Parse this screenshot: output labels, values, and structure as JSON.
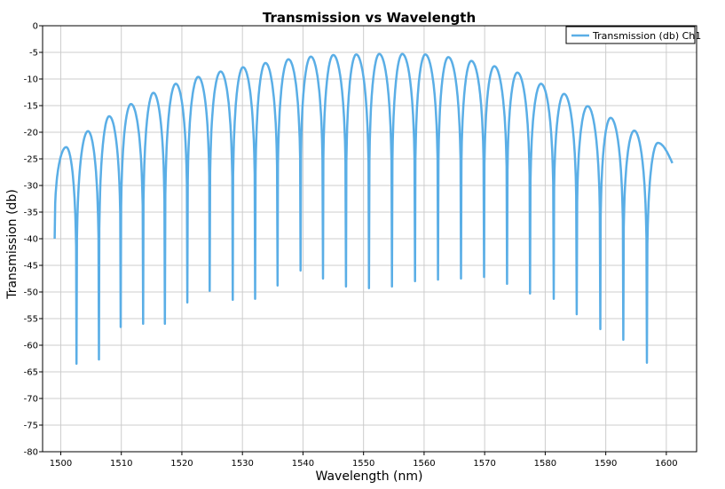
{
  "chart_data": {
    "type": "line",
    "title": "Transmission vs Wavelength",
    "xlabel": "Wavelength (nm)",
    "ylabel": "Transmission (db)",
    "xlim": [
      1497,
      1605
    ],
    "ylim": [
      -80,
      0
    ],
    "xticks": [
      1500,
      1510,
      1520,
      1530,
      1540,
      1550,
      1560,
      1570,
      1580,
      1590,
      1600
    ],
    "yticks": [
      0,
      -5,
      -10,
      -15,
      -20,
      -25,
      -30,
      -35,
      -40,
      -45,
      -50,
      -55,
      -60,
      -65,
      -70,
      -75,
      -80
    ],
    "grid": true,
    "legend_position": "top-right",
    "series": [
      {
        "name": "Transmission (db) Ch1",
        "color": "#5aaee6",
        "x_start": 1499.0,
        "x_end": 1601.0,
        "start_value": -40,
        "end_value": -25.8,
        "peaks": [
          {
            "x": 1500.9,
            "y": -22.8
          },
          {
            "x": 1504.5,
            "y": -19.8
          },
          {
            "x": 1508.0,
            "y": -17.0
          },
          {
            "x": 1511.6,
            "y": -14.7
          },
          {
            "x": 1515.3,
            "y": -12.6
          },
          {
            "x": 1519.0,
            "y": -10.9
          },
          {
            "x": 1522.7,
            "y": -9.6
          },
          {
            "x": 1526.4,
            "y": -8.6
          },
          {
            "x": 1530.1,
            "y": -7.8
          },
          {
            "x": 1533.8,
            "y": -7.0
          },
          {
            "x": 1537.6,
            "y": -6.3
          },
          {
            "x": 1541.3,
            "y": -5.8
          },
          {
            "x": 1545.0,
            "y": -5.5
          },
          {
            "x": 1548.8,
            "y": -5.4
          },
          {
            "x": 1552.6,
            "y": -5.3
          },
          {
            "x": 1556.4,
            "y": -5.3
          },
          {
            "x": 1560.2,
            "y": -5.4
          },
          {
            "x": 1564.0,
            "y": -5.9
          },
          {
            "x": 1567.8,
            "y": -6.6
          },
          {
            "x": 1571.6,
            "y": -7.6
          },
          {
            "x": 1575.4,
            "y": -8.8
          },
          {
            "x": 1579.3,
            "y": -10.9
          },
          {
            "x": 1583.1,
            "y": -12.8
          },
          {
            "x": 1587.0,
            "y": -15.1
          },
          {
            "x": 1590.8,
            "y": -17.3
          },
          {
            "x": 1594.7,
            "y": -19.7
          },
          {
            "x": 1598.6,
            "y": -22.0
          }
        ],
        "dips": [
          {
            "x": 1502.6,
            "y": -63.5
          },
          {
            "x": 1506.3,
            "y": -62.7
          },
          {
            "x": 1509.9,
            "y": -56.6
          },
          {
            "x": 1513.6,
            "y": -56.0
          },
          {
            "x": 1517.2,
            "y": -56.0
          },
          {
            "x": 1520.9,
            "y": -52.0
          },
          {
            "x": 1524.6,
            "y": -49.8
          },
          {
            "x": 1528.4,
            "y": -51.5
          },
          {
            "x": 1532.1,
            "y": -51.3
          },
          {
            "x": 1535.8,
            "y": -48.8
          },
          {
            "x": 1539.6,
            "y": -46.0
          },
          {
            "x": 1543.3,
            "y": -47.5
          },
          {
            "x": 1547.1,
            "y": -49.0
          },
          {
            "x": 1550.9,
            "y": -49.3
          },
          {
            "x": 1554.7,
            "y": -49.0
          },
          {
            "x": 1558.5,
            "y": -48.0
          },
          {
            "x": 1562.3,
            "y": -47.7
          },
          {
            "x": 1566.1,
            "y": -47.5
          },
          {
            "x": 1569.9,
            "y": -47.2
          },
          {
            "x": 1573.7,
            "y": -48.5
          },
          {
            "x": 1577.5,
            "y": -50.3
          },
          {
            "x": 1581.4,
            "y": -51.3
          },
          {
            "x": 1585.2,
            "y": -54.2
          },
          {
            "x": 1589.1,
            "y": -57.0
          },
          {
            "x": 1592.9,
            "y": -59.0
          },
          {
            "x": 1596.8,
            "y": -63.3
          }
        ]
      }
    ]
  }
}
